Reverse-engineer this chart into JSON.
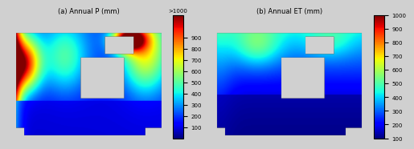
{
  "title_a": "(a) Annual P (mm)",
  "title_b": "(b) Annual ET (mm)",
  "colorbar_a_label": ">1000",
  "colorbar_b_ticks": [
    100,
    200,
    300,
    400,
    500,
    600,
    700,
    800,
    900,
    1000
  ],
  "colorbar_a_ticks": [
    100,
    200,
    300,
    400,
    500,
    600,
    700,
    800,
    900
  ],
  "vmin_a": 0,
  "vmax_a": 1100,
  "vmin_b": 100,
  "vmax_b": 1000,
  "bg_color": "#e8e8e8",
  "fig_bg": "#d8d8d8"
}
